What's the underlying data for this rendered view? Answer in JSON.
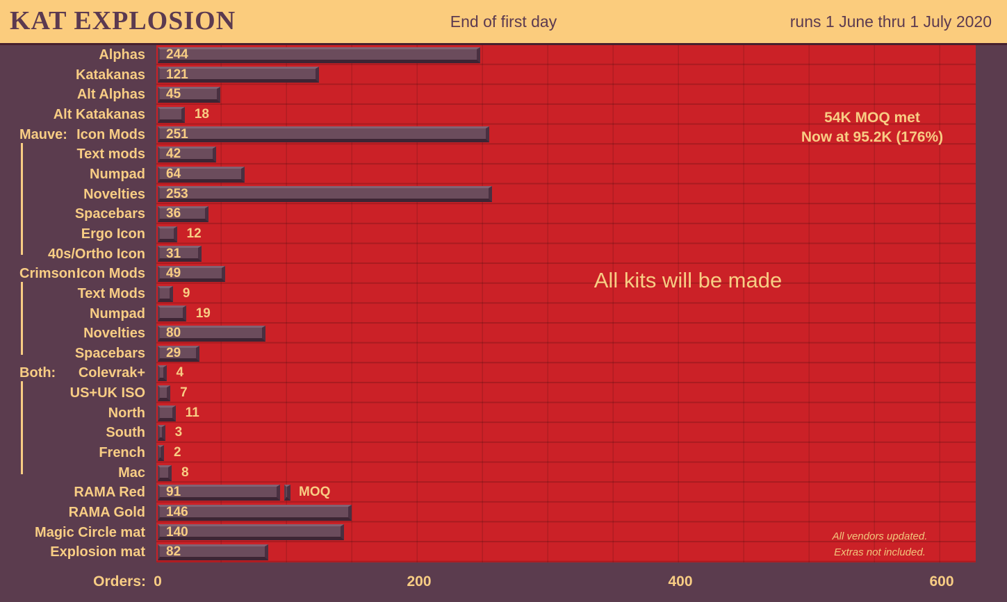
{
  "header": {
    "title": "KAT EXPLOSION",
    "subtitle": "End of first day",
    "date_range": "runs 1 June thru 1 July 2020"
  },
  "axis": {
    "label": "Orders:",
    "tick_values": [
      0,
      200,
      400,
      600
    ],
    "tick_labels": [
      "0",
      "200",
      "400",
      "600"
    ]
  },
  "annotations": {
    "moq_met_line1": "54K MOQ met",
    "moq_met_line2": "Now at 95.2K (176%)",
    "center_note": "All kits will be made",
    "footnote_line1": "All vendors updated.",
    "footnote_line2": "Extras not included."
  },
  "moq_marker": {
    "label": "MOQ",
    "row": "RAMA Red",
    "row_index": 22,
    "value": 100
  },
  "chart_data": {
    "type": "bar",
    "orientation": "horizontal",
    "title": "KAT EXPLOSION",
    "xlabel": "Orders",
    "xlim": [
      0,
      620
    ],
    "grid_interval": 50,
    "categories": [
      "Alphas",
      "Katakanas",
      "Alt Alphas",
      "Alt Katakanas",
      "Icon Mods",
      "Text mods",
      "Numpad",
      "Novelties",
      "Spacebars",
      "Ergo Icon",
      "40s/Ortho Icon",
      "Icon Mods",
      "Text Mods",
      "Numpad",
      "Novelties",
      "Spacebars",
      "Colevrak+",
      "US+UK ISO",
      "North",
      "South",
      "French",
      "Mac",
      "RAMA Red",
      "RAMA Gold",
      "Magic Circle mat",
      "Explosion mat"
    ],
    "values": [
      244,
      121,
      45,
      18,
      251,
      42,
      64,
      253,
      36,
      12,
      31,
      49,
      9,
      19,
      80,
      29,
      4,
      7,
      11,
      3,
      2,
      8,
      91,
      146,
      140,
      82
    ],
    "groups": [
      {
        "label": "Mauve:",
        "start": 4,
        "end": 10
      },
      {
        "label": "Crimson:",
        "start": 11,
        "end": 15
      },
      {
        "label": "Both:",
        "start": 16,
        "end": 21
      }
    ]
  },
  "colors": {
    "header_bg": "#fbcc7d",
    "header_text": "#5b3a50",
    "page_bg": "#5b3c4e",
    "plot_bg": "#cb2127",
    "bar_fill": "#6b4c5c",
    "bar_highlight": "#816374",
    "bar_shadow": "#3d2534",
    "text_cream": "#f8cd84"
  }
}
